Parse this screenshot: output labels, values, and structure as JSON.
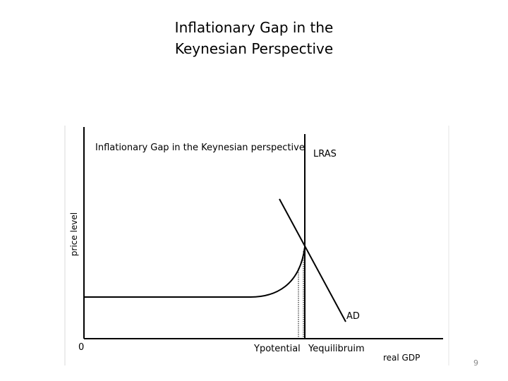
{
  "slide": {
    "title_line1": "Inflationary Gap in the",
    "title_line2": "Keynesian Perspective",
    "page_number": "9"
  },
  "diagram": {
    "inner_title": "Inflationary Gap in the Keynesian perspective",
    "y_axis_label": "price level",
    "x_axis_label": "real GDP",
    "origin_label": "0",
    "lras_label": "LRAS",
    "ad_label": "AD",
    "y_potential_label": "Ypotential",
    "y_equilibrium_label": "Yequilibruim",
    "colors": {
      "line": "#000000",
      "frame_shadow": "#d8d8d8",
      "page_number": "#8a8a8a"
    }
  }
}
